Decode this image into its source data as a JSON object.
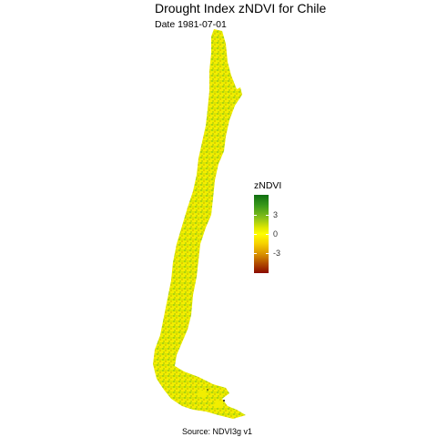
{
  "map": {
    "title": "Drought Index zNDVI for Chile",
    "subtitle": "Date 1981-07-01",
    "caption": "Source: NDVI3g v1",
    "region": "Chile",
    "legend": {
      "title": "zNDVI",
      "ticks": [
        {
          "value": 3,
          "label": "3"
        },
        {
          "value": 0,
          "label": "0"
        },
        {
          "value": -3,
          "label": "-3"
        }
      ],
      "range": [
        -5,
        5
      ],
      "colors": [
        "#8a0a00",
        "#b04a00",
        "#d89000",
        "#f6d200",
        "#ffff00",
        "#dfe800",
        "#8cc21a",
        "#3a9a1a",
        "#0f6e12"
      ]
    }
  }
}
